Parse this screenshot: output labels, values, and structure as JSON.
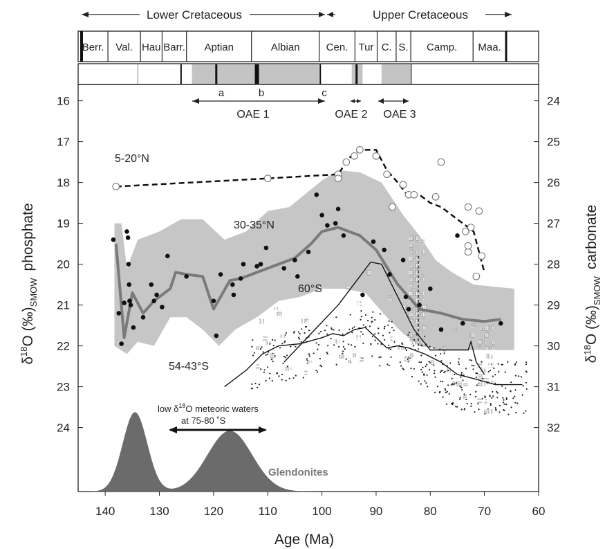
{
  "chart_data": {
    "type": "scatter",
    "xlabel": "Age (Ma)",
    "xlim": [
      145,
      60
    ],
    "x_ticks": [
      "140",
      "130",
      "120",
      "110",
      "100",
      "90",
      "80",
      "70",
      "60"
    ],
    "ylabel_left": {
      "main": "δ",
      "sup": "18",
      "rest": "O (‰)",
      "sub": "SMOW",
      "tail": "phosphate"
    },
    "ylabel_right": {
      "main": "δ",
      "sup": "18",
      "rest": "O (‰)",
      "sub": "SMOW",
      "tail": "carbonate"
    },
    "ylim_left": [
      16,
      26
    ],
    "ylim_right": [
      24,
      34
    ],
    "y_ticks_left": [
      "16",
      "17",
      "18",
      "19",
      "20",
      "21",
      "22",
      "23",
      "24"
    ],
    "y_ticks_right": [
      "24",
      "25",
      "26",
      "27",
      "28",
      "29",
      "30",
      "31",
      "32"
    ],
    "epochs": [
      {
        "label": "Lower Cretaceous",
        "from": 145,
        "to": 100
      },
      {
        "label": "Upper Cretaceous",
        "from": 100,
        "to": 66
      }
    ],
    "stages": [
      {
        "label": "Berr.",
        "from": 145,
        "to": 139.5
      },
      {
        "label": "Val.",
        "from": 139.5,
        "to": 133.5
      },
      {
        "label": "Hau",
        "from": 133.5,
        "to": 129.5
      },
      {
        "label": "Barr.",
        "from": 129.5,
        "to": 125
      },
      {
        "label": "Aptian",
        "from": 125,
        "to": 113
      },
      {
        "label": "Albian",
        "from": 113,
        "to": 100.5
      },
      {
        "label": "Cen.",
        "from": 100.5,
        "to": 93.9
      },
      {
        "label": "Tur",
        "from": 93.9,
        "to": 89.8
      },
      {
        "label": "C.",
        "from": 89.8,
        "to": 86.3
      },
      {
        "label": "S.",
        "from": 86.3,
        "to": 83.6
      },
      {
        "label": "Camp.",
        "from": 83.6,
        "to": 72.1
      },
      {
        "label": "Maa.",
        "from": 72.1,
        "to": 66
      }
    ],
    "oae_labels": {
      "a": "a",
      "b": "b",
      "c": "c",
      "oae1": "OAE 1",
      "oae2": "OAE 2",
      "oae3": "OAE 3"
    },
    "series_labels": {
      "low_lat": "5-20°N",
      "mid_lat": "30-35°N",
      "s60": "60°S",
      "s54": "54-43°S",
      "glendonites": "Glendonites",
      "meteoric_line1": "low δ",
      "meteoric_sup": "18",
      "meteoric_line1b": "O meteoric waters",
      "meteoric_line2": "at 75-80 ˚S"
    },
    "mid_lat_trend": {
      "x": [
        138,
        136.5,
        135,
        133,
        131,
        128,
        127,
        125,
        122,
        120,
        117,
        115,
        112,
        108,
        105,
        102,
        100,
        97,
        93,
        90,
        86,
        82,
        78,
        74,
        70,
        67
      ],
      "y": [
        19.5,
        21.8,
        20.7,
        21.2,
        20.9,
        20.6,
        20.2,
        20.25,
        20.3,
        21.1,
        20.4,
        20.35,
        20.2,
        20.0,
        19.85,
        19.5,
        19.2,
        19.1,
        19.3,
        19.65,
        20.5,
        21.1,
        21.2,
        21.35,
        21.4,
        21.35
      ]
    },
    "mid_lat_points": {
      "x": [
        138.5,
        137.5,
        137,
        136.5,
        136,
        135.8,
        135.7,
        135.6,
        135.5,
        135.3,
        134.8,
        133,
        131.5,
        131,
        130.5,
        129.5,
        128.5,
        125,
        120,
        119.5,
        118.7,
        116.5,
        116.3,
        115,
        114.5,
        112,
        111.3,
        110.3,
        107,
        105,
        104.5,
        102.5,
        101,
        100,
        99,
        97.5,
        97,
        96,
        92.5,
        90.5,
        88.5,
        87.5,
        85,
        84,
        84.5,
        82,
        80,
        78,
        75,
        74,
        67
      ],
      "y": [
        19.4,
        21.2,
        21.95,
        20.95,
        19.2,
        19.35,
        20.0,
        20.5,
        20.9,
        21.0,
        21.55,
        21.3,
        20.5,
        20.9,
        20.75,
        21.05,
        19.8,
        20.3,
        20.9,
        21.75,
        20.25,
        20.5,
        20.75,
        20.35,
        20.0,
        20.05,
        20.0,
        19.6,
        20.1,
        19.9,
        20.3,
        19.7,
        18.3,
        18.8,
        19.05,
        19.0,
        18.65,
        19.3,
        20.75,
        19.45,
        19.65,
        20.25,
        19.9,
        21.1,
        20.8,
        21.0,
        20.6,
        21.6,
        19.3,
        21.45,
        21.45
      ]
    },
    "low_lat_trend": {
      "x": [
        138,
        110,
        97,
        95,
        93,
        91,
        90,
        88,
        86,
        84,
        82,
        80,
        78,
        74,
        72,
        70
      ],
      "y": [
        18.1,
        17.9,
        17.8,
        17.4,
        17.2,
        17.2,
        17.2,
        17.7,
        18.0,
        18.35,
        18.3,
        18.5,
        18.6,
        19.0,
        19.2,
        20.2
      ]
    },
    "low_lat_points": {
      "x": [
        138,
        110,
        97,
        97,
        95.5,
        94,
        93,
        90,
        88,
        87,
        85,
        84,
        83,
        79,
        78,
        73,
        73.5,
        73,
        72.5,
        71,
        70.5,
        71.5,
        73
      ],
      "y": [
        18.1,
        17.9,
        17.8,
        17.9,
        17.5,
        17.35,
        17.2,
        17.35,
        17.8,
        18.6,
        18.05,
        18.3,
        18.3,
        18.35,
        17.5,
        18.6,
        19.2,
        19.7,
        19.1,
        18.7,
        19.8,
        20.3,
        19.55
      ]
    }
  }
}
